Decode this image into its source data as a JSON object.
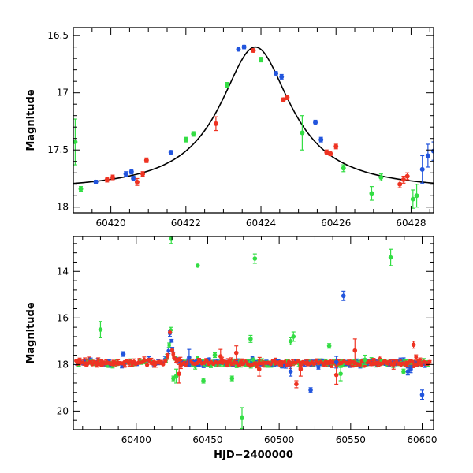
{
  "chart_data": [
    {
      "type": "scatter",
      "panel": "top",
      "xlabel": "",
      "ylabel": "Magnitude",
      "xlim": [
        60419,
        60428.6
      ],
      "ylim": [
        18.05,
        16.43
      ],
      "y_inverted": true,
      "xticks": [
        60420,
        60422,
        60424,
        60426,
        60428
      ],
      "xtick_labels": [
        "60420",
        "60422",
        "60424",
        "60426",
        "60428"
      ],
      "yticks": [
        16.5,
        17,
        17.5,
        18
      ],
      "ytick_labels": [
        "16.5",
        "17",
        "17.5",
        "18"
      ],
      "model_curve": {
        "color": "#000000",
        "form": "lorentzian",
        "peak_x": 60423.85,
        "peak_mag": 16.6,
        "base_mag": 17.86,
        "halfwidth_days": 1.15
      },
      "series": [
        {
          "color": "#2255dd",
          "points": [
            [
              60419.6,
              17.78,
              0.015
            ],
            [
              60420.4,
              17.71,
              0.02
            ],
            [
              60420.55,
              17.69,
              0.02
            ],
            [
              60420.6,
              17.75,
              0.02
            ],
            [
              60421.6,
              17.52,
              0.015
            ],
            [
              60423.4,
              16.62,
              0.015
            ],
            [
              60423.55,
              16.6,
              0.015
            ],
            [
              60424.4,
              16.83,
              0.015
            ],
            [
              60424.55,
              16.86,
              0.02
            ],
            [
              60425.45,
              17.26,
              0.02
            ],
            [
              60425.6,
              17.41,
              0.02
            ],
            [
              60428.3,
              17.67,
              0.12
            ],
            [
              60428.45,
              17.55,
              0.1
            ],
            [
              60428.6,
              17.51,
              0.08
            ]
          ]
        },
        {
          "color": "#ee3322",
          "points": [
            [
              60419.9,
              17.76,
              0.02
            ],
            [
              60420.05,
              17.74,
              0.02
            ],
            [
              60420.7,
              17.78,
              0.03
            ],
            [
              60420.85,
              17.71,
              0.02
            ],
            [
              60420.95,
              17.59,
              0.02
            ],
            [
              60422.8,
              17.27,
              0.06
            ],
            [
              60423.8,
              16.63,
              0.015
            ],
            [
              60424.6,
              17.06,
              0.015
            ],
            [
              60424.7,
              17.04,
              0.02
            ],
            [
              60425.75,
              17.52,
              0.02
            ],
            [
              60425.85,
              17.53,
              0.02
            ],
            [
              60426.0,
              17.47,
              0.02
            ],
            [
              60427.7,
              17.8,
              0.03
            ],
            [
              60427.8,
              17.76,
              0.03
            ],
            [
              60427.9,
              17.73,
              0.03
            ]
          ]
        },
        {
          "color": "#33dd44",
          "points": [
            [
              60419.05,
              17.43,
              0.2
            ],
            [
              60419.2,
              17.84,
              0.02
            ],
            [
              60422.0,
              17.41,
              0.02
            ],
            [
              60422.2,
              17.36,
              0.02
            ],
            [
              60423.1,
              16.93,
              0.02
            ],
            [
              60424.0,
              16.71,
              0.02
            ],
            [
              60425.1,
              17.35,
              0.15
            ],
            [
              60426.2,
              17.66,
              0.03
            ],
            [
              60426.95,
              17.88,
              0.06
            ],
            [
              60427.2,
              17.74,
              0.03
            ],
            [
              60428.05,
              17.93,
              0.08
            ],
            [
              60428.15,
              17.9,
              0.1
            ]
          ]
        }
      ]
    },
    {
      "type": "scatter",
      "panel": "bottom",
      "xlabel": "HJD−2400000",
      "ylabel": "Magnitude",
      "xlim": [
        60356,
        60608
      ],
      "ylim": [
        20.8,
        12.5
      ],
      "y_inverted": true,
      "xticks": [
        60400,
        60450,
        60500,
        60550,
        60600
      ],
      "xtick_labels": [
        "60400",
        "60450",
        "60500",
        "60550",
        "60600"
      ],
      "yticks": [
        14,
        16,
        18,
        20
      ],
      "ytick_labels": [
        "14",
        "16",
        "18",
        "20"
      ],
      "baseline_mag": 17.93,
      "peak": {
        "x": 60423.85,
        "mag": 16.6,
        "halfwidth_days": 1.15
      },
      "outliers": [
        {
          "color": "#33dd44",
          "points": [
            [
              60375,
              16.5,
              0.35
            ],
            [
              60424.5,
              12.6,
              0.2
            ],
            [
              60443,
              13.75,
              0.05
            ],
            [
              60483,
              13.45,
              0.2
            ],
            [
              60578,
              13.4,
              0.35
            ],
            [
              60474,
              20.3,
              0.45
            ],
            [
              60428,
              18.5,
              0.3
            ],
            [
              60426,
              18.6,
              0.1
            ],
            [
              60447,
              18.7,
              0.1
            ],
            [
              60480,
              16.9,
              0.15
            ],
            [
              60510,
              16.8,
              0.2
            ],
            [
              60508,
              17.0,
              0.15
            ],
            [
              60535,
              17.2,
              0.1
            ],
            [
              60543,
              18.4,
              0.3
            ],
            [
              60560,
              17.8,
              0.2
            ],
            [
              60587,
              18.3,
              0.1
            ],
            [
              60467,
              18.6,
              0.1
            ],
            [
              60455,
              17.6,
              0.1
            ]
          ]
        },
        {
          "color": "#2255dd",
          "points": [
            [
              60545,
              15.05,
              0.2
            ],
            [
              60600,
              19.3,
              0.2
            ],
            [
              60522,
              19.1,
              0.1
            ],
            [
              60391,
              17.55,
              0.1
            ],
            [
              60437,
              17.7,
              0.35
            ],
            [
              60592,
              18.2,
              0.15
            ],
            [
              60508,
              18.3,
              0.2
            ],
            [
              60540,
              17.9,
              0.25
            ],
            [
              60590,
              18.3,
              0.15
            ]
          ]
        },
        {
          "color": "#ee3322",
          "points": [
            [
              60594,
              17.15,
              0.15
            ],
            [
              60512,
              18.85,
              0.15
            ],
            [
              60540,
              18.45,
              0.4
            ],
            [
              60459,
              17.65,
              0.3
            ],
            [
              60486,
              18.2,
              0.3
            ],
            [
              60470,
              17.5,
              0.3
            ],
            [
              60553,
              17.4,
              0.5
            ],
            [
              60515,
              18.2,
              0.3
            ],
            [
              60430,
              18.4,
              0.4
            ],
            [
              60580,
              18.0,
              0.2
            ]
          ]
        }
      ],
      "series": [
        {
          "color": "#33dd44",
          "label": ""
        },
        {
          "color": "#2255dd",
          "label": ""
        },
        {
          "color": "#ee3322",
          "label": ""
        }
      ]
    }
  ]
}
